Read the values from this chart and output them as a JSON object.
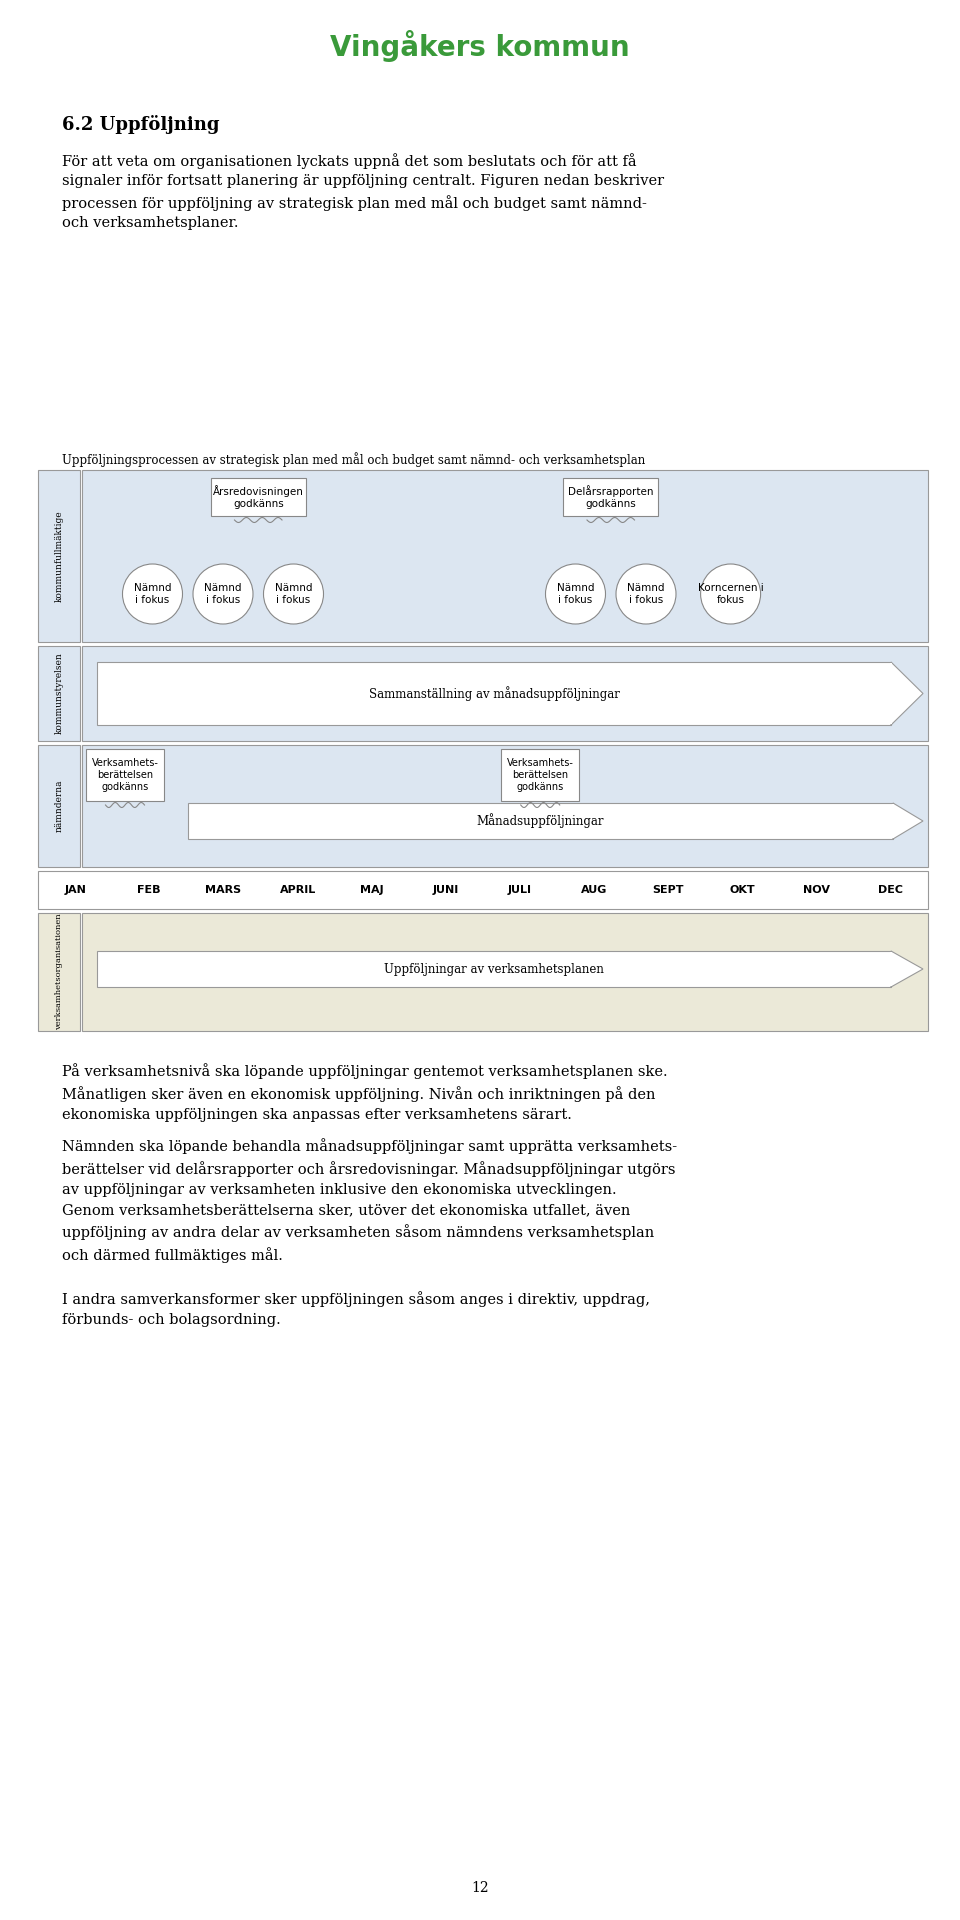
{
  "title": "Vingåkers kommun",
  "title_color": "#3a9a3a",
  "page_title": "6.2 Uppföljning",
  "intro_text_line1": "För att veta om organisationen lyckats uppnå det som beslutats och för att få",
  "intro_text_line2": "signaler inför fortsatt planering är uppföljning centralt. Figuren nedan beskriver",
  "intro_text_line3": "processen för uppföljning av strategisk plan med mål och budget samt nämnd-",
  "intro_text_line4": "och verksamhetsplaner.",
  "diagram_title": "Uppföljningsprocessen av strategisk plan med mål och budget samt nämnd- och verksamhetsplan",
  "months": [
    "JAN",
    "FEB",
    "MARS",
    "APRIL",
    "MAJ",
    "JUNI",
    "JULI",
    "AUG",
    "SEPT",
    "OKT",
    "NOV",
    "DEC"
  ],
  "row1_label": "kommunfullmäktige",
  "row2_label": "kommunstyrelsen",
  "row3_label": "nämnderna",
  "row4_label": "verksamhetsorganisationen",
  "row1_bg": "#dce6f1",
  "row2_bg": "#dce6f1",
  "row3_bg": "#dce6f1",
  "row4_bg": "#ebe9d8",
  "label_bg": "#dce6f1",
  "label_bg4": "#ebe9d8",
  "box_border": "#999999",
  "circle_fill": "#ffffff",
  "circle_border": "#888888",
  "callout_fill": "#ffffff",
  "callout_border": "#888888",
  "text_color": "#000000",
  "bottom_text1": "På verksamhetsnivå ska löpande uppföljningar gentemot verksamhetsplanen ske.\nMånatligen sker även en ekonomisk uppföljning. Nivån och inriktningen på den\nekonomiska uppföljningen ska anpassas efter verksamhetens särart.",
  "bottom_text2": "Nämnden ska löpande behandla månadsuppföljningar samt upprätta verksamhets-\nberättelser vid delårsrapporter och årsredovisningar. Månadsuppföljningar utgörs\nav uppföljningar av verksamheten inklusive den ekonomiska utvecklingen.\nGenom verksamhetsberättelserna sker, utöver det ekonomiska utfallet, även\nuppföljning av andra delar av verksamheten såsom nämndens verksamhetsplan\noch därmed fullmäktiges mål.",
  "bottom_text3": "I andra samverkansformer sker uppföljningen såsom anges i direktiv, uppdrag,\nförbunds- och bolagsordning.",
  "page_number": "12"
}
